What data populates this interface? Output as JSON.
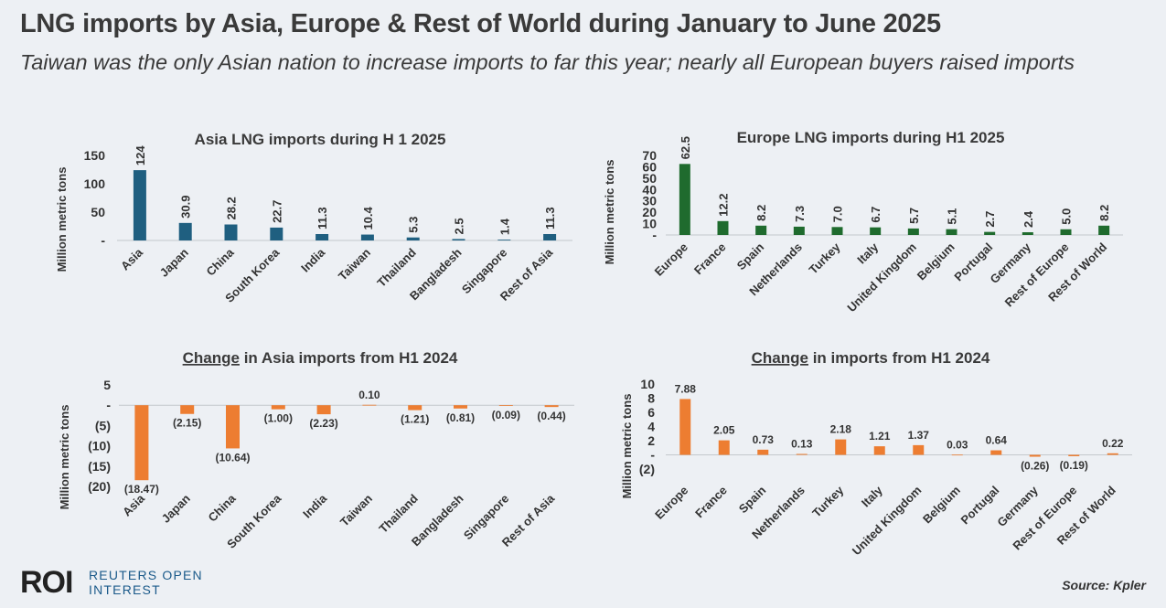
{
  "header": {
    "title": "LNG imports by Asia, Europe & Rest of World during January to June 2025",
    "subtitle": "Taiwan was the only Asian nation to increase imports to far this year; nearly all European buyers raised imports"
  },
  "footer": {
    "logo_mark": "ROI",
    "logo_line1": "REUTERS OPEN",
    "logo_line2": "INTEREST",
    "source": "Source: Kpler"
  },
  "colors": {
    "asia": "#1f5f80",
    "europe": "#1f6b2e",
    "change": "#ed7d31"
  },
  "chart_data": [
    {
      "id": "asia-imports",
      "type": "bar",
      "title": "Asia LNG imports during H 1 2025",
      "title_underline": "",
      "title_rest": "",
      "ylabel": "Million metric tons",
      "categories": [
        "Asia",
        "Japan",
        "China",
        "South Korea",
        "India",
        "Taiwan",
        "Thailand",
        "Bangladesh",
        "Singapore",
        "Rest of Asia"
      ],
      "values": [
        124,
        30.9,
        28.2,
        22.7,
        11.3,
        10.4,
        5.3,
        2.5,
        1.4,
        11.3
      ],
      "labels": [
        "124",
        "30.9",
        "28.2",
        "22.7",
        "11.3",
        "10.4",
        "5.3",
        "2.5",
        "1.4",
        "11.3"
      ],
      "yticks": [
        0,
        50,
        100,
        150
      ],
      "yticklabels": [
        "-",
        "50",
        "100",
        "150"
      ],
      "ylim": [
        0,
        150
      ],
      "color": "#1f5f80"
    },
    {
      "id": "europe-imports",
      "type": "bar",
      "title": "Europe LNG imports during H1 2025",
      "title_underline": "",
      "title_rest": "",
      "ylabel": "Million metric tons",
      "categories": [
        "Europe",
        "France",
        "Spain",
        "Netherlands",
        "Turkey",
        "Italy",
        "United Kingdom",
        "Belgium",
        "Portugal",
        "Germany",
        "Rest of Europe",
        "Rest of World"
      ],
      "values": [
        62.5,
        12.2,
        8.2,
        7.3,
        7.0,
        6.7,
        5.7,
        5.1,
        2.7,
        2.4,
        5.0,
        8.2
      ],
      "labels": [
        "62.5",
        "12.2",
        "8.2",
        "7.3",
        "7.0",
        "6.7",
        "5.7",
        "5.1",
        "2.7",
        "2.4",
        "5.0",
        "8.2"
      ],
      "yticks": [
        0,
        10,
        20,
        30,
        40,
        50,
        60,
        70
      ],
      "yticklabels": [
        "-",
        "10",
        "20",
        "30",
        "40",
        "50",
        "60",
        "70"
      ],
      "ylim": [
        0,
        70
      ],
      "color": "#1f6b2e"
    },
    {
      "id": "asia-change",
      "type": "bar",
      "title": "",
      "title_underline": "Change",
      "title_rest": " in Asia imports from H1 2024",
      "ylabel": "Million metric tons",
      "categories": [
        "Asia",
        "Japan",
        "China",
        "South Korea",
        "India",
        "Taiwan",
        "Thailand",
        "Bangladesh",
        "Singapore",
        "Rest of Asia"
      ],
      "values": [
        -18.47,
        -2.15,
        -10.64,
        -1.0,
        -2.23,
        0.1,
        -1.21,
        -0.81,
        -0.09,
        -0.44
      ],
      "labels": [
        "(18.47)",
        "(2.15)",
        "(10.64)",
        "(1.00)",
        "(2.23)",
        "0.10",
        "(1.21)",
        "(0.81)",
        "(0.09)",
        "(0.44)"
      ],
      "yticks": [
        5,
        0,
        -5,
        -10,
        -15,
        -20
      ],
      "yticklabels": [
        "5",
        "-",
        "(5)",
        "(10)",
        "(15)",
        "(20)"
      ],
      "ylim": [
        -20,
        5
      ],
      "color": "#ed7d31"
    },
    {
      "id": "europe-change",
      "type": "bar",
      "title": "",
      "title_underline": "Change",
      "title_rest": " in imports from H1 2024",
      "ylabel": "Million metric tons",
      "categories": [
        "Europe",
        "France",
        "Spain",
        "Netherlands",
        "Turkey",
        "Italy",
        "United Kingdom",
        "Belgium",
        "Portugal",
        "Germany",
        "Rest of Europe",
        "Rest of World"
      ],
      "values": [
        7.88,
        2.05,
        0.73,
        0.13,
        2.18,
        1.21,
        1.37,
        0.03,
        0.64,
        -0.26,
        -0.19,
        0.22
      ],
      "labels": [
        "7.88",
        "2.05",
        "0.73",
        "0.13",
        "2.18",
        "1.21",
        "1.37",
        "0.03",
        "0.64",
        "(0.26)",
        "(0.19)",
        "0.22"
      ],
      "yticks": [
        10,
        8,
        6,
        4,
        2,
        0,
        -2
      ],
      "yticklabels": [
        "10",
        "8",
        "6",
        "4",
        "2",
        "-",
        "(2)"
      ],
      "ylim": [
        -2,
        10
      ],
      "color": "#ed7d31"
    }
  ]
}
